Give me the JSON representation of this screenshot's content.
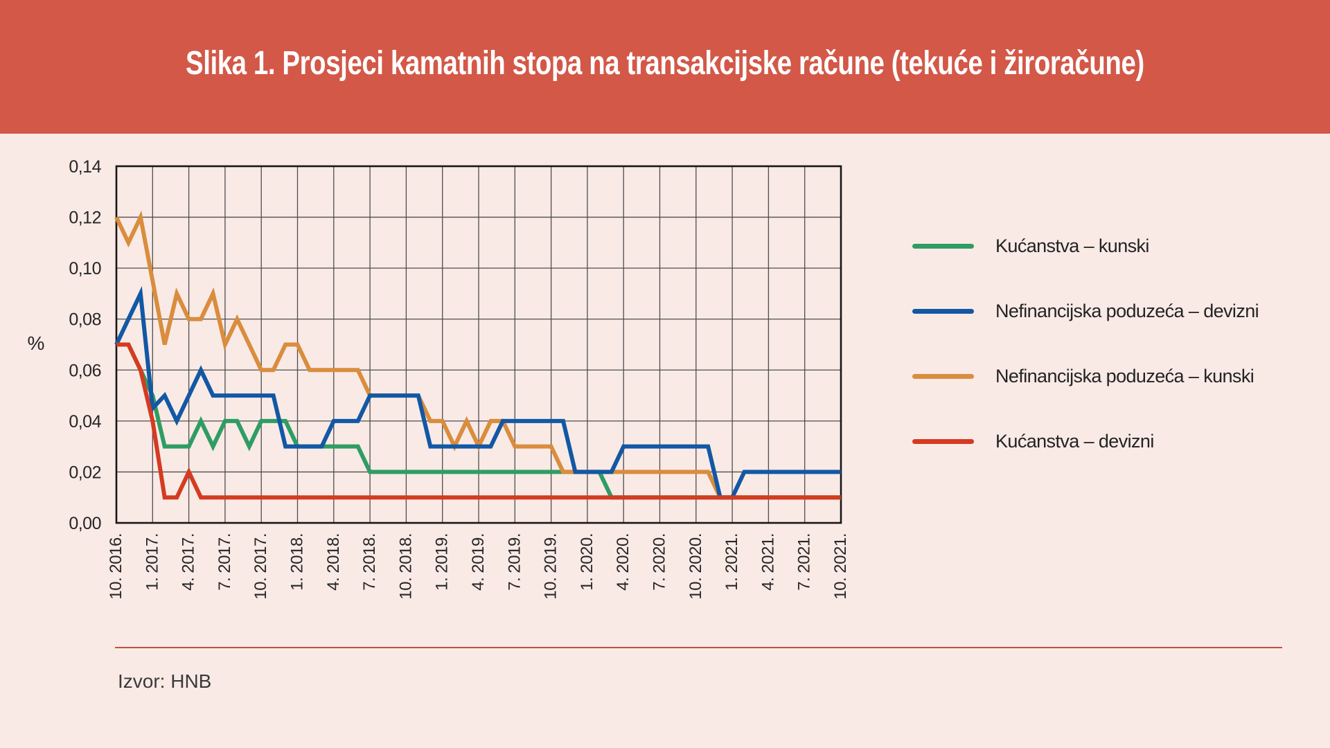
{
  "header": {
    "title": "Slika 1. Prosjeci kamatnih stopa na transakcijske račune (tekuće i žiroračune)",
    "bg_color": "#d35848",
    "text_color": "#ffffff"
  },
  "source": {
    "label": "Izvor: HNB"
  },
  "colors": {
    "page_bg": "#f9eae6",
    "grid": "#4d4d4d",
    "frame": "#161616",
    "tick_text": "#262626",
    "separator_rule": "#c2503e"
  },
  "legend": {
    "position": "right",
    "items": [
      {
        "label": "Kućanstva – kunski",
        "color": "#2f9d63"
      },
      {
        "label": "Nefinancijska poduzeća – devizni",
        "color": "#1258a4"
      },
      {
        "label": "Nefinancijska poduzeća – kunski",
        "color": "#d98d3d"
      },
      {
        "label": "Kućanstva – devizni",
        "color": "#d43b21"
      }
    ]
  },
  "chart_data": {
    "type": "line",
    "title": "Slika 1. Prosjeci kamatnih stopa na transakcijske račune (tekuće i žiroračune)",
    "ylabel": "%",
    "xlabel": "",
    "ylim": [
      0,
      0.14
    ],
    "grid": true,
    "n_points": 61,
    "x_frequency": "monthly",
    "x_start": "10. 2016.",
    "x_end": "10. 2021.",
    "xtick_every_months": 3,
    "xtick_labels": [
      "10. 2016.",
      "1. 2017.",
      "4. 2017.",
      "7. 2017.",
      "10. 2017.",
      "1. 2018.",
      "4. 2018.",
      "7. 2018.",
      "10. 2018.",
      "1. 2019.",
      "4. 2019.",
      "7. 2019.",
      "10. 2019.",
      "1. 2020.",
      "4. 2020.",
      "7. 2020.",
      "10. 2020.",
      "1. 2021.",
      "4. 2021.",
      "7. 2021.",
      "10. 2021."
    ],
    "ytick_labels": [
      "0,14",
      "0,12",
      "0,10",
      "0,08",
      "0,06",
      "0,04",
      "0,02",
      "0,00"
    ],
    "plot_order": [
      0,
      2,
      1,
      3
    ],
    "series": [
      {
        "name": "Kućanstva – kunski",
        "color": "#2f9d63",
        "values": [
          0.07,
          0.07,
          0.06,
          0.05,
          0.03,
          0.03,
          0.03,
          0.04,
          0.03,
          0.04,
          0.04,
          0.03,
          0.04,
          0.04,
          0.04,
          0.03,
          0.03,
          0.03,
          0.03,
          0.03,
          0.03,
          0.02,
          0.02,
          0.02,
          0.02,
          0.02,
          0.02,
          0.02,
          0.02,
          0.02,
          0.02,
          0.02,
          0.02,
          0.02,
          0.02,
          0.02,
          0.02,
          0.02,
          0.02,
          0.02,
          0.02,
          0.01,
          0.01,
          0.01,
          0.01,
          0.01,
          0.01,
          0.01,
          0.01,
          0.01,
          0.01,
          0.01,
          0.01,
          0.01,
          0.01,
          0.01,
          0.01,
          0.01,
          0.01,
          0.01,
          0.01
        ]
      },
      {
        "name": "Nefinancijska poduzeća – devizni",
        "color": "#1258a4",
        "values": [
          0.07,
          0.08,
          0.09,
          0.045,
          0.05,
          0.04,
          0.05,
          0.06,
          0.05,
          0.05,
          0.05,
          0.05,
          0.05,
          0.05,
          0.03,
          0.03,
          0.03,
          0.03,
          0.04,
          0.04,
          0.04,
          0.05,
          0.05,
          0.05,
          0.05,
          0.05,
          0.03,
          0.03,
          0.03,
          0.03,
          0.03,
          0.03,
          0.04,
          0.04,
          0.04,
          0.04,
          0.04,
          0.04,
          0.02,
          0.02,
          0.02,
          0.02,
          0.03,
          0.03,
          0.03,
          0.03,
          0.03,
          0.03,
          0.03,
          0.03,
          0.01,
          0.01,
          0.02,
          0.02,
          0.02,
          0.02,
          0.02,
          0.02,
          0.02,
          0.02,
          0.02
        ]
      },
      {
        "name": "Nefinancijska poduzeća – kunski",
        "color": "#d98d3d",
        "values": [
          0.12,
          0.11,
          0.12,
          0.095,
          0.07,
          0.09,
          0.08,
          0.08,
          0.09,
          0.07,
          0.08,
          0.07,
          0.06,
          0.06,
          0.07,
          0.07,
          0.06,
          0.06,
          0.06,
          0.06,
          0.06,
          0.05,
          0.05,
          0.05,
          0.05,
          0.05,
          0.04,
          0.04,
          0.03,
          0.04,
          0.03,
          0.04,
          0.04,
          0.03,
          0.03,
          0.03,
          0.03,
          0.02,
          0.02,
          0.02,
          0.02,
          0.02,
          0.02,
          0.02,
          0.02,
          0.02,
          0.02,
          0.02,
          0.02,
          0.02,
          0.01,
          0.01,
          0.01,
          0.01,
          0.01,
          0.01,
          0.01,
          0.01,
          0.01,
          0.01,
          0.01
        ]
      },
      {
        "name": "Kućanstva – devizni",
        "color": "#d43b21",
        "values": [
          0.07,
          0.07,
          0.06,
          0.04,
          0.01,
          0.01,
          0.02,
          0.01,
          0.01,
          0.01,
          0.01,
          0.01,
          0.01,
          0.01,
          0.01,
          0.01,
          0.01,
          0.01,
          0.01,
          0.01,
          0.01,
          0.01,
          0.01,
          0.01,
          0.01,
          0.01,
          0.01,
          0.01,
          0.01,
          0.01,
          0.01,
          0.01,
          0.01,
          0.01,
          0.01,
          0.01,
          0.01,
          0.01,
          0.01,
          0.01,
          0.01,
          0.01,
          0.01,
          0.01,
          0.01,
          0.01,
          0.01,
          0.01,
          0.01,
          0.01,
          0.01,
          0.01,
          0.01,
          0.01,
          0.01,
          0.01,
          0.01,
          0.01,
          0.01,
          0.01,
          0.01
        ]
      }
    ]
  }
}
